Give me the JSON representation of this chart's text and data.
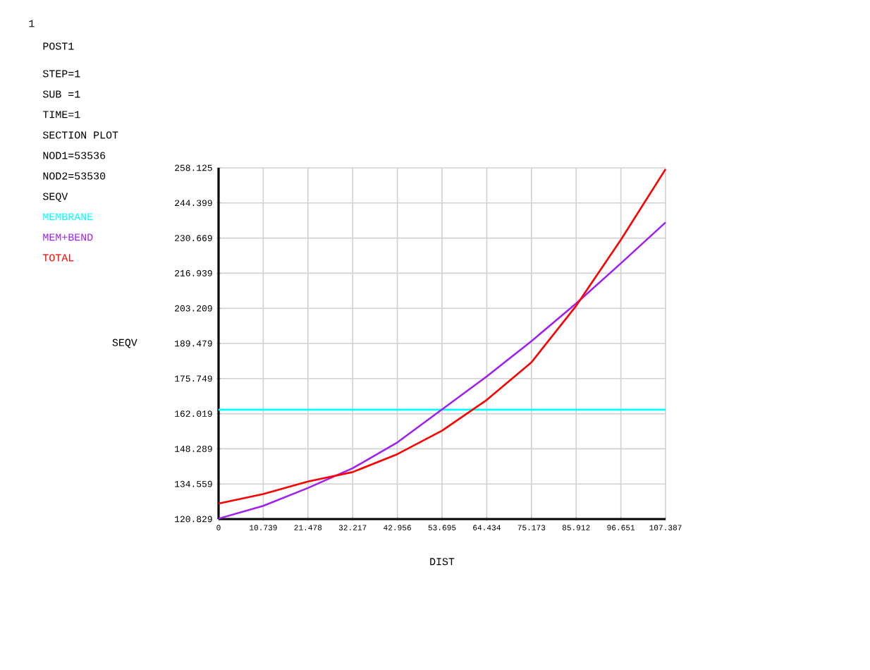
{
  "chart_data": {
    "type": "line",
    "xlabel": "DIST",
    "ylabel": "SEQV",
    "annotations": [
      "1",
      "POST1",
      "STEP=1",
      "SUB =1",
      "TIME=1",
      "SECTION PLOT",
      "NOD1=53536",
      "NOD2=53530",
      "SEQV"
    ],
    "x": [
      0,
      10.739,
      21.478,
      32.217,
      42.956,
      53.695,
      64.434,
      75.173,
      85.912,
      96.651,
      107.387
    ],
    "series": [
      {
        "name": "MEMBRANE",
        "color": "#00ffff",
        "x": [
          0,
          107.387
        ],
        "values": [
          163.6,
          163.6
        ]
      },
      {
        "name": "MEM+BEND",
        "color": "#a020f0",
        "values": [
          121,
          126.0,
          133.0,
          140.7,
          150.8,
          163.7,
          176.6,
          190.4,
          205.1,
          220.8,
          236.8
        ]
      },
      {
        "name": "TOTAL",
        "color": "#ff0000",
        "values": [
          126.9,
          130.6,
          135.5,
          139.2,
          146.2,
          155.4,
          167.4,
          182.1,
          204.2,
          230.0,
          257.6
        ]
      }
    ],
    "xlim": [
      0,
      107.387
    ],
    "ylim": [
      120.829,
      258.125
    ],
    "xticks": [
      0,
      10.739,
      21.478,
      32.217,
      42.956,
      53.695,
      64.434,
      75.173,
      85.912,
      96.651,
      107.387
    ],
    "yticks": [
      120.829,
      134.559,
      148.289,
      162.019,
      175.749,
      189.479,
      203.209,
      216.939,
      230.669,
      244.399,
      258.125
    ],
    "grid": true,
    "legend": "top left"
  }
}
